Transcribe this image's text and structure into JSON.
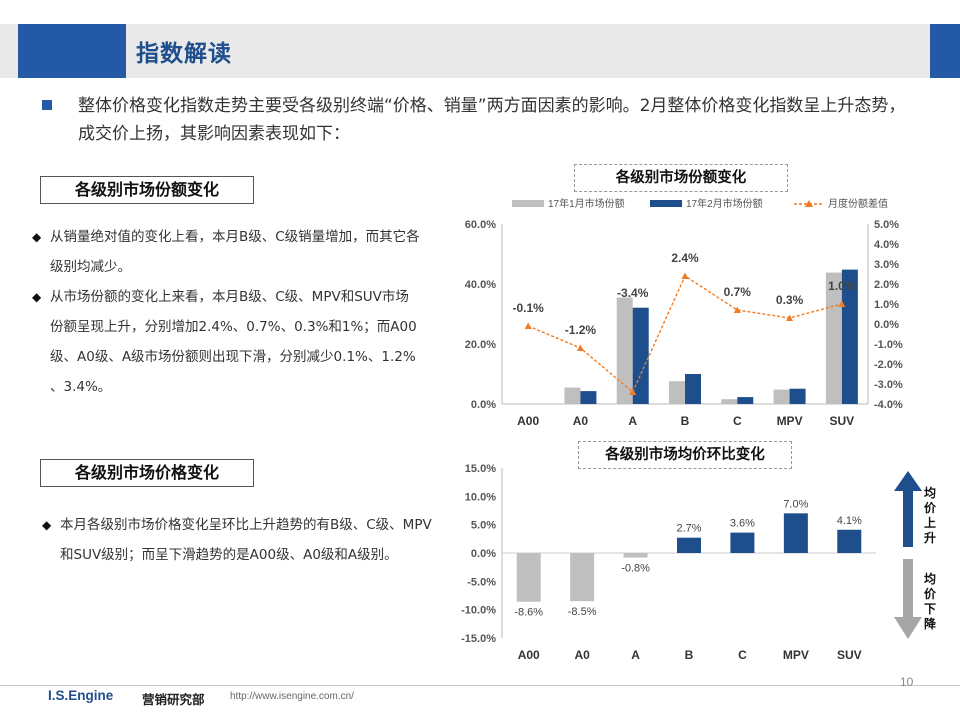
{
  "header": {
    "title": "指数解读"
  },
  "intro": {
    "text": "整体价格变化指数走势主要受各级别终端“价格、销量”两方面因素的影响。2月整体价格变化指数呈上升态势，成交价上扬，其影响因素表现如下："
  },
  "section1": {
    "heading": "各级别市场份额变化",
    "bullets": [
      "从销量绝对值的变化上看，本月B级、C级销量增加，而其它各级别均减少。",
      "从市场份额的变化上来看，本月B级、C级、MPV和SUV市场份额呈现上升，分别增加2.4%、0.7%、0.3%和1%；而A00级、A0级、A级市场份额则出现下滑，分别减少0.1%、1.2% 、3.4%。"
    ]
  },
  "section2": {
    "heading": "各级别市场价格变化",
    "bullets": [
      "本月各级别市场价格变化呈环比上升趋势的有B级、C级、MPV和SUV级别；而呈下滑趋势的是A00级、A0级和A级别。"
    ]
  },
  "chart_data": [
    {
      "type": "bar",
      "title": "各级别市场份额变化",
      "categories": [
        "A00",
        "A0",
        "A",
        "B",
        "C",
        "MPV",
        "SUV"
      ],
      "series": [
        {
          "name": "17年1月市场份额",
          "type": "bar",
          "axis": "left",
          "color": "#bfbfbf",
          "values": [
            0.1,
            5.5,
            35.5,
            7.6,
            1.6,
            4.8,
            43.8
          ]
        },
        {
          "name": "17年2月市场份额",
          "type": "bar",
          "axis": "left",
          "color": "#1f4e8c",
          "values": [
            0.0,
            4.3,
            32.1,
            10.0,
            2.3,
            5.1,
            44.8
          ]
        },
        {
          "name": "月度份额差值",
          "type": "line",
          "axis": "right",
          "color": "#f07b22",
          "values": [
            -0.1,
            -1.2,
            -3.4,
            2.4,
            0.7,
            0.3,
            1.0
          ],
          "labels": [
            "-0.1%",
            "-1.2%",
            "-3.4%",
            "2.4%",
            "0.7%",
            "0.3%",
            "1.0%"
          ]
        }
      ],
      "ylim_left": [
        0,
        60
      ],
      "yticks_left": [
        "0.0%",
        "20.0%",
        "40.0%",
        "60.0%"
      ],
      "ylim_right": [
        -4,
        5
      ],
      "yticks_right": [
        "-4.0%",
        "-3.0%",
        "-2.0%",
        "-1.0%",
        "0.0%",
        "1.0%",
        "2.0%",
        "3.0%",
        "4.0%",
        "5.0%"
      ],
      "legend": "top",
      "grid": false
    },
    {
      "type": "bar",
      "title": "各级别市场均价环比变化",
      "categories": [
        "A00",
        "A0",
        "A",
        "B",
        "C",
        "MPV",
        "SUV"
      ],
      "values": [
        -8.6,
        -8.5,
        -0.8,
        2.7,
        3.6,
        7.0,
        4.1
      ],
      "labels": [
        "-8.6%",
        "-8.5%",
        "-0.8%",
        "2.7%",
        "3.6%",
        "7.0%",
        "4.1%"
      ],
      "colors": {
        "positive": "#1f4e8c",
        "negative": "#bfbfbf"
      },
      "ylim": [
        -15,
        15
      ],
      "yticks": [
        "-15.0%",
        "-10.0%",
        "-5.0%",
        "0.0%",
        "5.0%",
        "10.0%",
        "15.0%"
      ],
      "grid": false,
      "arrows": {
        "up": "均价上升",
        "down": "均价下降"
      }
    }
  ],
  "footer": {
    "brand": "I.S.Engine",
    "dept": "营销研究部",
    "url": "http://www.isengine.com.cn/",
    "page": "10"
  }
}
